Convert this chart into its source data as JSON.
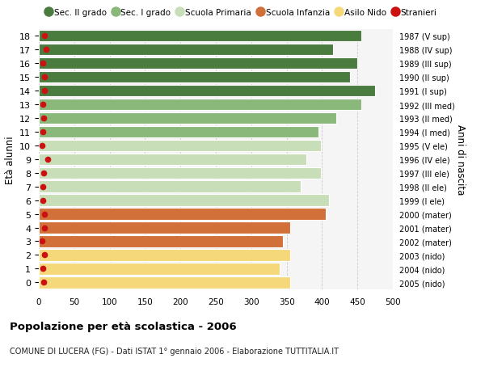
{
  "ages": [
    18,
    17,
    16,
    15,
    14,
    13,
    12,
    11,
    10,
    9,
    8,
    7,
    6,
    5,
    4,
    3,
    2,
    1,
    0
  ],
  "values": [
    455,
    415,
    450,
    440,
    475,
    455,
    420,
    395,
    398,
    378,
    398,
    370,
    410,
    405,
    355,
    345,
    355,
    340,
    355
  ],
  "stranieri": [
    8,
    10,
    6,
    8,
    8,
    6,
    7,
    6,
    5,
    12,
    7,
    6,
    6,
    8,
    8,
    5,
    8,
    6,
    7
  ],
  "right_labels": [
    "1987 (V sup)",
    "1988 (IV sup)",
    "1989 (III sup)",
    "1990 (II sup)",
    "1991 (I sup)",
    "1992 (III med)",
    "1993 (II med)",
    "1994 (I med)",
    "1995 (V ele)",
    "1996 (IV ele)",
    "1997 (III ele)",
    "1998 (II ele)",
    "1999 (I ele)",
    "2000 (mater)",
    "2001 (mater)",
    "2002 (mater)",
    "2003 (nido)",
    "2004 (nido)",
    "2005 (nido)"
  ],
  "bar_colors": [
    "#4a7c3f",
    "#4a7c3f",
    "#4a7c3f",
    "#4a7c3f",
    "#4a7c3f",
    "#8ab87a",
    "#8ab87a",
    "#8ab87a",
    "#c8deb8",
    "#c8deb8",
    "#c8deb8",
    "#c8deb8",
    "#c8deb8",
    "#d2703a",
    "#d2703a",
    "#d2703a",
    "#f5d87a",
    "#f5d87a",
    "#f5d87a"
  ],
  "stranieri_color": "#cc1111",
  "title": "Popolazione per età scolastica - 2006",
  "subtitle": "COMUNE DI LUCERA (FG) - Dati ISTAT 1° gennaio 2006 - Elaborazione TUTTITALIA.IT",
  "ylabel": "Età alunni",
  "right_ylabel": "Anni di nascita",
  "xlim": [
    0,
    500
  ],
  "xticks": [
    0,
    50,
    100,
    150,
    200,
    250,
    300,
    350,
    400,
    450,
    500
  ],
  "legend_labels": [
    "Sec. II grado",
    "Sec. I grado",
    "Scuola Primaria",
    "Scuola Infanzia",
    "Asilo Nido",
    "Stranieri"
  ],
  "legend_colors": [
    "#4a7c3f",
    "#8ab87a",
    "#c8deb8",
    "#d2703a",
    "#f5d87a",
    "#cc1111"
  ],
  "bg_color": "#f5f5f5",
  "grid_color": "#cccccc",
  "white": "#ffffff"
}
